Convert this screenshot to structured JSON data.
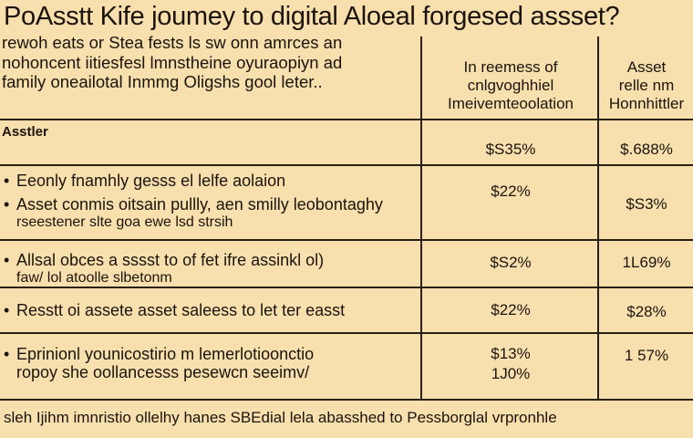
{
  "title": "PoAsstt Kife joumey to digital Aloeal forgesed assset?",
  "intro_lines": [
    "rewoh eats or Stea fests ls sw onn amrces an",
    "nohoncent iitiesfesl lmnstheine oyuraopiyn ad",
    "family oneailotal Inmmg Oligshs gool leter.."
  ],
  "columns": {
    "col1": [
      "In reemess of",
      "cnlgvoghhiel",
      "Imeivemteoolation"
    ],
    "col2": [
      "Asset",
      "relle nm",
      "Honnhittler"
    ]
  },
  "section_label": "Asstler",
  "rows": [
    {
      "lines": [
        {
          "text": "",
          "bullet": false,
          "small": false
        }
      ],
      "col1": [
        "$S35%"
      ],
      "col2": [
        "$.688%"
      ]
    },
    {
      "lines": [
        {
          "text": "Eeonly fnamhly gesss el lelfe aolaion",
          "bullet": true,
          "small": false
        },
        {
          "text": "Asset conmis oitsain pullly, aen smilly leobontaghy",
          "bullet": true,
          "small": false
        },
        {
          "text": "rseestener slte goa ewe  lsd strsih",
          "bullet": false,
          "small": true
        }
      ],
      "col1": [
        "$22%"
      ],
      "col2": [
        "$S3%"
      ]
    },
    {
      "lines": [
        {
          "text": "Allsal obces a sssst  to of fet ifre assinkl ol)",
          "bullet": true,
          "small": false
        },
        {
          "text": "faw/ lol atoolle slbetonm",
          "bullet": false,
          "small": true
        }
      ],
      "col1": [
        "$S2%"
      ],
      "col2": [
        "1L69%"
      ]
    },
    {
      "lines": [
        {
          "text": "Resstt oi assete asset saleess to let ter easst",
          "bullet": true,
          "small": false
        }
      ],
      "col1": [
        "$22%"
      ],
      "col2": [
        "$28%"
      ]
    },
    {
      "lines": [
        {
          "text": "Eprinionl younicostirio m lemerlotioonctio",
          "bullet": true,
          "small": false
        },
        {
          "text": "ropoy she oollancesss pesewcn seeimv/",
          "bullet": false,
          "small": false
        }
      ],
      "col1": [
        "$13%",
        "1J0%"
      ],
      "col2": [
        "1 57%"
      ]
    }
  ],
  "footer": "sleh Ijihm imnristio ollelhy hanes SBEdial lela abasshed to Pessborglal vrpronhle"
}
